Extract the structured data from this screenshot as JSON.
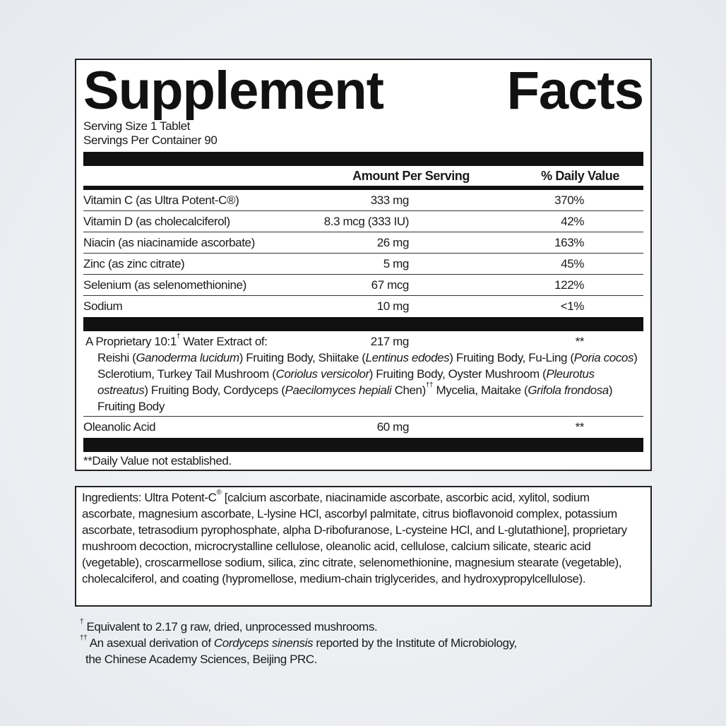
{
  "facts": {
    "title_words": [
      "Supplement",
      "Facts"
    ],
    "serving_size": "Serving Size 1 Tablet",
    "servings_per_container": "Servings Per Container 90",
    "headers": {
      "amount": "Amount Per Serving",
      "daily_value": "% Daily Value"
    },
    "nutrients": [
      {
        "name": "Vitamin C (as Ultra Potent-C®)",
        "amount": "333 mg",
        "dv": "370%"
      },
      {
        "name": "Vitamin D (as cholecalciferol)",
        "amount": "8.3 mcg (333 IU)",
        "dv": "42%"
      },
      {
        "name": "Niacin (as niacinamide ascorbate)",
        "amount": "26 mg",
        "dv": "163%"
      },
      {
        "name": "Zinc (as zinc citrate)",
        "amount": "5 mg",
        "dv": "45%"
      },
      {
        "name": "Selenium (as selenomethionine)",
        "amount": "67 mcg",
        "dv": "122%"
      },
      {
        "name": "Sodium",
        "amount": "10 mg",
        "dv": "<1%"
      }
    ],
    "blend": {
      "name_segments": [
        {
          "t": "A Proprietary 10:1"
        },
        {
          "t": "†",
          "sup": true
        },
        {
          "t": " Water Extract of:"
        }
      ],
      "amount": "217 mg",
      "dv": "**",
      "description": [
        {
          "t": "Reishi ("
        },
        {
          "t": "Ganoderma lucidum",
          "i": true
        },
        {
          "t": ") Fruiting Body, Shiitake ("
        },
        {
          "t": "Lentinus edodes",
          "i": true
        },
        {
          "t": ") Fruiting Body, Fu-Ling ("
        },
        {
          "t": "Poria cocos",
          "i": true
        },
        {
          "t": ") Sclerotium, Turkey Tail Mushroom ("
        },
        {
          "t": "Coriolus versicolor",
          "i": true
        },
        {
          "t": ") Fruiting Body, Oyster Mushroom ("
        },
        {
          "t": "Pleurotus ostreatus",
          "i": true
        },
        {
          "t": ") Fruiting Body, Cordyceps ("
        },
        {
          "t": "Paecilomyces hepiali",
          "i": true
        },
        {
          "t": " Chen)"
        },
        {
          "t": "††",
          "sup": true
        },
        {
          "t": " Mycelia, Maitake ("
        },
        {
          "t": "Grifola frondosa",
          "i": true
        },
        {
          "t": ") Fruiting Body"
        }
      ]
    },
    "other": {
      "name": "Oleanolic Acid",
      "amount": "60 mg",
      "dv": "**"
    },
    "footnote": "**Daily Value not established."
  },
  "ingredients": [
    {
      "t": "Ingredients: Ultra Potent-C"
    },
    {
      "t": "®",
      "sup": true
    },
    {
      "t": " [calcium ascorbate, niacinamide ascorbate, ascorbic acid, xylitol, sodium ascorbate, magnesium ascorbate, L-lysine HCl, ascorbyl palmitate, citrus bioflavonoid complex, potassium ascorbate, tetrasodium pyrophosphate, alpha D-ribofuranose, L-cysteine HCl, and L-glutathione], proprietary mushroom decoction, microcrystalline cellulose, oleanolic acid, cellulose, calcium silicate, stearic acid (vegetable), croscarmellose sodium, silica, zinc citrate, selenomethionine, magnesium stearate (vegetable), cholecalciferol, and coating (hypromellose, medium-chain triglycerides, and hydroxypropylcellulose)."
    }
  ],
  "notes": {
    "note1": [
      {
        "t": "†",
        "sup": true
      },
      {
        "t": " Equivalent to 2.17 g raw, dried, unprocessed mushrooms."
      }
    ],
    "note2": [
      {
        "t": "††",
        "sup": true
      },
      {
        "t": " An asexual derivation of "
      },
      {
        "t": "Cordyceps sinensis",
        "i": true
      },
      {
        "t": " reported by the Institute of Microbiology,"
      }
    ],
    "note2b": "the Chinese Academy Sciences, Beijing PRC."
  }
}
